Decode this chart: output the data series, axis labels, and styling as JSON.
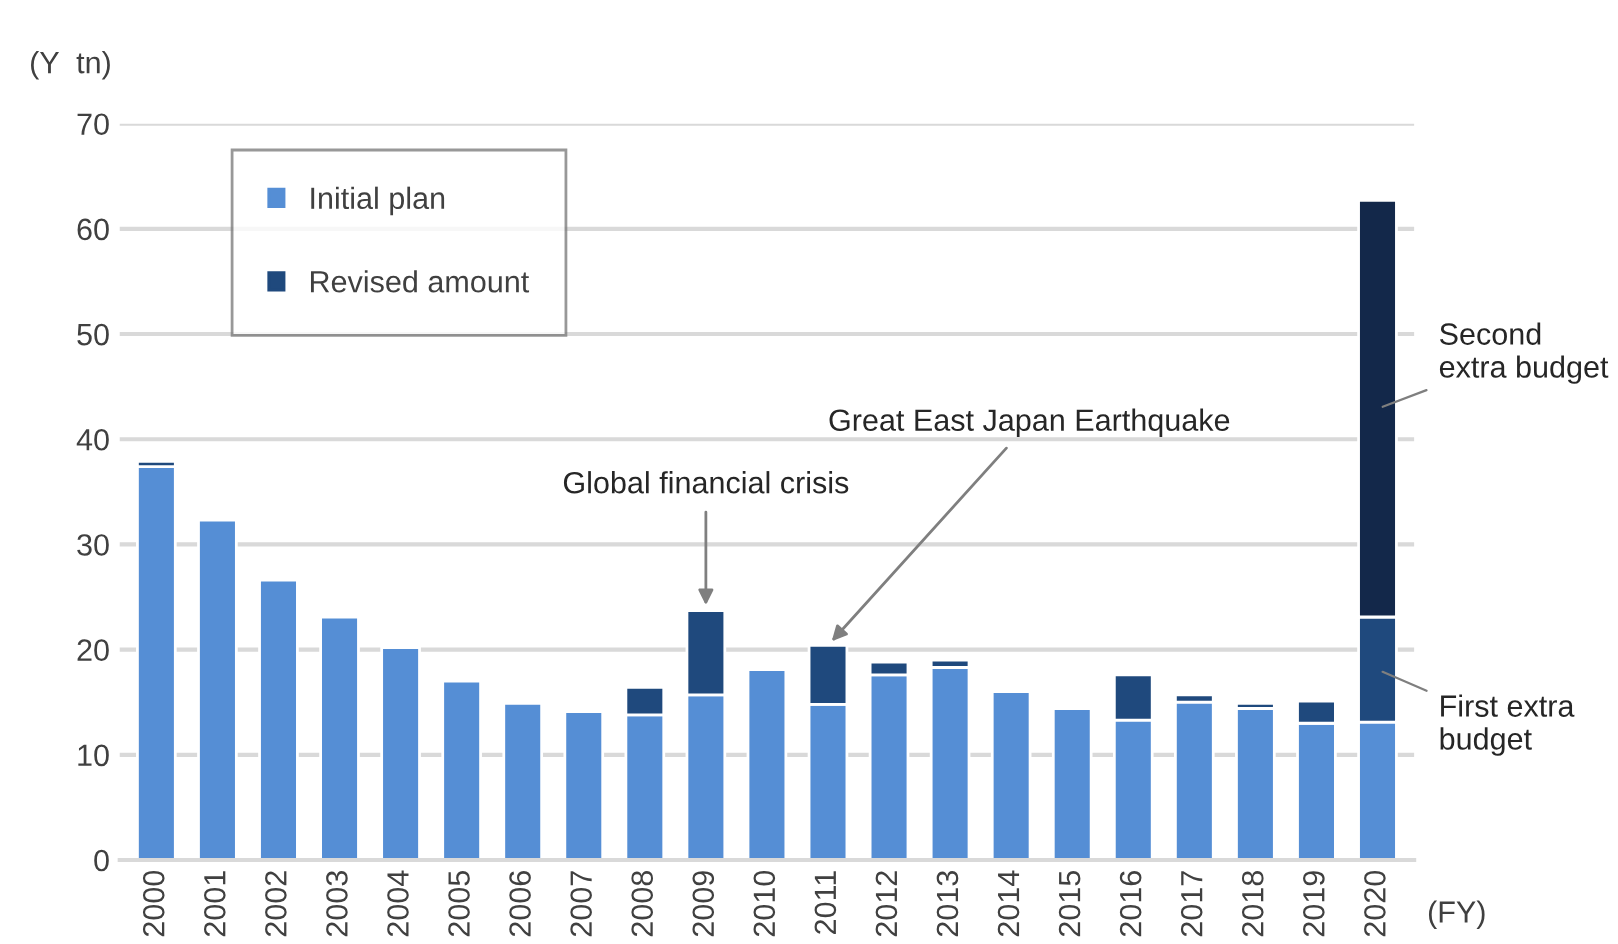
{
  "chart_data": {
    "type": "bar",
    "stacked": true,
    "ylabel": "(Y  tn)",
    "xlabel": "(FY)",
    "categories": [
      "2000",
      "2001",
      "2002",
      "2003",
      "2004",
      "2005",
      "2006",
      "2007",
      "2008",
      "2009",
      "2010",
      "2011",
      "2012",
      "2013",
      "2014",
      "2015",
      "2016",
      "2017",
      "2018",
      "2019",
      "2020"
    ],
    "series": [
      {
        "name": "Initial plan",
        "color": "#558ed5",
        "values": [
          37.4,
          32.3,
          26.6,
          23.1,
          20.2,
          17.0,
          14.9,
          14.1,
          13.8,
          15.7,
          18.1,
          14.8,
          17.6,
          18.3,
          16.0,
          14.4,
          13.3,
          15.0,
          14.4,
          13.0,
          13.1
        ]
      },
      {
        "name": "Revised amount",
        "color": "#1f497d",
        "values": [
          0.5,
          null,
          null,
          null,
          null,
          null,
          null,
          null,
          2.6,
          8.0,
          null,
          5.6,
          1.2,
          0.7,
          null,
          null,
          4.3,
          0.7,
          0.5,
          2.1,
          10.0
        ]
      },
      {
        "color": "#13284a",
        "values": [
          null,
          null,
          null,
          null,
          null,
          null,
          null,
          null,
          null,
          null,
          null,
          null,
          null,
          null,
          null,
          null,
          null,
          null,
          null,
          null,
          39.6
        ]
      }
    ],
    "ylim": [
      0,
      70
    ],
    "yticks": [
      0,
      10,
      20,
      30,
      40,
      50,
      60,
      70
    ],
    "grid": "y",
    "legend": "top left",
    "annotations": [
      {
        "text": "Global financial crisis",
        "x": "2009",
        "y": 23.7
      },
      {
        "text": "Great East Japan Earthquake",
        "x": "2011",
        "y": 20.4
      },
      "Second\nextra budget",
      "First extra\nbudget"
    ]
  }
}
